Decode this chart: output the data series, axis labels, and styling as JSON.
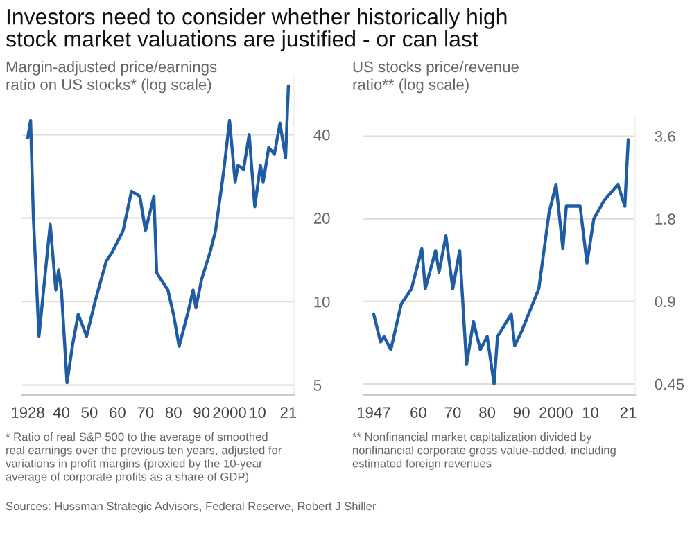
{
  "chart_data": [
    {
      "type": "line",
      "title": "Investors need to consider whether historically high\nstock market valuations are justified - or can last",
      "subtitle": "Margin-adjusted price/earnings\nratio on US stocks* (log scale)",
      "series": [
        {
          "color": "#1f5ca3",
          "x": [
            1928,
            1929,
            1930,
            1932,
            1934,
            1936,
            1938,
            1939,
            1940,
            1942,
            1944,
            1946,
            1949,
            1952,
            1956,
            1958,
            1962,
            1965,
            1968,
            1970,
            1973,
            1974,
            1978,
            1980,
            1982,
            1985,
            1987,
            1988,
            1990,
            1993,
            1995,
            1998,
            2000,
            2002,
            2003,
            2005,
            2007,
            2009,
            2011,
            2012,
            2014,
            2016,
            2018,
            2019,
            2020,
            2021
          ],
          "values": [
            39,
            45,
            20,
            7.5,
            12,
            19,
            11,
            13,
            11,
            5.1,
            7,
            9,
            7.5,
            10,
            14,
            15,
            18,
            25,
            24,
            18,
            24,
            12.7,
            11,
            9,
            6.9,
            9,
            11,
            9.5,
            12,
            15,
            18,
            30,
            45,
            27,
            31,
            30,
            40,
            22,
            31,
            27,
            36,
            34,
            44,
            38,
            33,
            60
          ]
        }
      ],
      "xlim": [
        1926,
        2023
      ],
      "xticks": [
        {
          "value": 1928,
          "label": "1928"
        },
        {
          "value": 1940,
          "label": "40"
        },
        {
          "value": 1950,
          "label": "50"
        },
        {
          "value": 1960,
          "label": "60"
        },
        {
          "value": 1970,
          "label": "70"
        },
        {
          "value": 1980,
          "label": "80"
        },
        {
          "value": 1990,
          "label": "90"
        },
        {
          "value": 2000,
          "label": "2000"
        },
        {
          "value": 2010,
          "label": "10"
        },
        {
          "value": 2021,
          "label": "21"
        }
      ],
      "ylim": [
        4.6,
        65
      ],
      "yticks": [
        5,
        10,
        20,
        40
      ],
      "log": true,
      "grid": "y",
      "line_style": "solid",
      "annotations": [
        "* Ratio of real S&P 500 to the average of smoothed\nreal earnings over the previous ten years, adjusted for\nvariations in profit margins (proxied by the 10-year\naverage of corporate profits as a share of GDP)",
        "Sources: Hussman Strategic Advisors, Federal Reserve, Robert J Shiller"
      ]
    },
    {
      "type": "line",
      "subtitle": "US stocks price/revenue\nratio** (log scale)",
      "series": [
        {
          "color": "#1f5ca3",
          "x": [
            1947,
            1949,
            1950,
            1952,
            1955,
            1958,
            1961,
            1962,
            1965,
            1966,
            1968,
            1970,
            1972,
            1974,
            1976,
            1978,
            1980,
            1982,
            1983,
            1987,
            1988,
            1990,
            1995,
            1998,
            2000,
            2002,
            2003,
            2007,
            2009,
            2011,
            2014,
            2018,
            2020,
            2021
          ],
          "values": [
            0.81,
            0.64,
            0.67,
            0.6,
            0.88,
            1.0,
            1.4,
            1.0,
            1.38,
            1.15,
            1.56,
            1.0,
            1.38,
            0.53,
            0.76,
            0.6,
            0.67,
            0.45,
            0.67,
            0.81,
            0.62,
            0.7,
            1.0,
            1.9,
            2.4,
            1.4,
            2.0,
            2.0,
            1.24,
            1.8,
            2.1,
            2.4,
            2.0,
            3.5
          ]
        }
      ],
      "xlim": [
        1944,
        2023
      ],
      "xticks": [
        {
          "value": 1947,
          "label": "1947"
        },
        {
          "value": 1960,
          "label": "60"
        },
        {
          "value": 1970,
          "label": "70"
        },
        {
          "value": 1980,
          "label": "80"
        },
        {
          "value": 1990,
          "label": "90"
        },
        {
          "value": 2000,
          "label": "2000"
        },
        {
          "value": 2010,
          "label": "10"
        },
        {
          "value": 2021,
          "label": "21"
        }
      ],
      "ylim": [
        0.41,
        4.2
      ],
      "yticks": [
        0.45,
        0.9,
        1.8,
        3.6
      ],
      "log": true,
      "grid": "y",
      "line_style": "solid",
      "annotations": [
        "** Nonfinancial market capitalization divided by\nnonfinancial corporate gross value-added, including\nestimated foreign revenues"
      ]
    }
  ]
}
